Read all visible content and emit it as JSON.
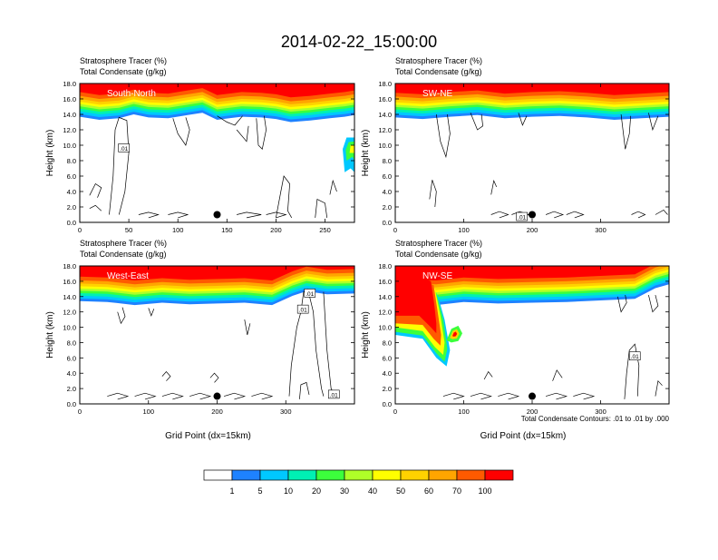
{
  "figure_title": "2014-02-22_15:00:00",
  "colors": {
    "levels": [
      "#ffffff",
      "#1e82ff",
      "#00c8ff",
      "#00f0b4",
      "#3cff3c",
      "#afff28",
      "#ffff00",
      "#ffd200",
      "#ffa500",
      "#ff5a00",
      "#ff0000"
    ],
    "panel_bg": "#ffffff"
  },
  "colorbar": {
    "labels": [
      "1",
      "5",
      "10",
      "20",
      "30",
      "40",
      "50",
      "60",
      "70",
      "100"
    ]
  },
  "footnote": "Total Condensate Contours: .01 to .01 by .000",
  "chart_data": [
    {
      "type": "heatmap",
      "name": "South-North",
      "line1": "Stratosphere Tracer   (%)",
      "line2": "Total Condensate   (g/kg)",
      "label": "South-North",
      "ylabel": "Height (km)",
      "xlabel": "",
      "xlim": [
        0,
        280
      ],
      "ylim": [
        0,
        18
      ],
      "xticks": [
        "0",
        "50",
        "100",
        "150",
        "200",
        "250"
      ],
      "yticks": [
        "0.0",
        "2.0",
        "4.0",
        "6.0",
        "8.0",
        "10.0",
        "12.0",
        "14.0",
        "16.0",
        "18.0"
      ],
      "marker": {
        "x": 140,
        "y": 1.0
      },
      "tropopause": [
        [
          0,
          14.6
        ],
        [
          20,
          14.2
        ],
        [
          40,
          14.4
        ],
        [
          55,
          14.9
        ],
        [
          70,
          14.5
        ],
        [
          90,
          14.4
        ],
        [
          110,
          14.8
        ],
        [
          125,
          15.1
        ],
        [
          140,
          14.2
        ],
        [
          165,
          14.6
        ],
        [
          185,
          14.5
        ],
        [
          200,
          14.3
        ],
        [
          215,
          13.9
        ],
        [
          235,
          14.1
        ],
        [
          255,
          14.4
        ],
        [
          270,
          14.6
        ],
        [
          280,
          14.8
        ]
      ],
      "contour_labels": [
        {
          "x": 45,
          "y": 9.6,
          "text": ".01"
        }
      ]
    },
    {
      "type": "heatmap",
      "name": "SW-NE",
      "line1": "Stratosphere Tracer   (%)",
      "line2": "Total Condensate   (g/kg)",
      "label": "SW-NE",
      "ylabel": "Height (km)",
      "xlabel": "",
      "xlim": [
        0,
        400
      ],
      "ylim": [
        0,
        18
      ],
      "xticks": [
        "0",
        "100",
        "200",
        "300"
      ],
      "yticks": [
        "0.0",
        "2.0",
        "4.0",
        "6.0",
        "8.0",
        "10.0",
        "12.0",
        "14.0",
        "16.0",
        "18.0"
      ],
      "marker": {
        "x": 200,
        "y": 1.0
      },
      "tropopause": [
        [
          0,
          14.5
        ],
        [
          40,
          14.3
        ],
        [
          80,
          14.6
        ],
        [
          120,
          14.8
        ],
        [
          160,
          14.4
        ],
        [
          200,
          14.6
        ],
        [
          240,
          14.7
        ],
        [
          280,
          14.5
        ],
        [
          320,
          14.2
        ],
        [
          360,
          14.4
        ],
        [
          400,
          14.6
        ]
      ],
      "contour_labels": [
        {
          "x": 185,
          "y": 0.7,
          "text": ".01"
        }
      ]
    },
    {
      "type": "heatmap",
      "name": "West-East",
      "line1": "Stratosphere Tracer   (%)",
      "line2": "Total Condensate   (g/kg)",
      "label": "West-East",
      "ylabel": "Height (km)",
      "xlabel": "Grid Point (dx=15km)",
      "xlim": [
        0,
        400
      ],
      "ylim": [
        0,
        18
      ],
      "xticks": [
        "0",
        "100",
        "200",
        "300"
      ],
      "yticks": [
        "0.0",
        "2.0",
        "4.0",
        "6.0",
        "8.0",
        "10.0",
        "12.0",
        "14.0",
        "16.0",
        "18.0"
      ],
      "marker": {
        "x": 200,
        "y": 1.0
      },
      "tropopause": [
        [
          0,
          14.3
        ],
        [
          40,
          14.2
        ],
        [
          80,
          13.8
        ],
        [
          120,
          14.1
        ],
        [
          160,
          13.9
        ],
        [
          200,
          14.0
        ],
        [
          240,
          14.1
        ],
        [
          280,
          13.8
        ],
        [
          310,
          15.0
        ],
        [
          330,
          15.6
        ],
        [
          360,
          15.2
        ],
        [
          400,
          15.3
        ]
      ],
      "contour_labels": [
        {
          "x": 335,
          "y": 14.4,
          "text": ".01"
        },
        {
          "x": 325,
          "y": 12.3,
          "text": ".01"
        },
        {
          "x": 370,
          "y": 1.2,
          "text": ".01"
        }
      ]
    },
    {
      "type": "heatmap",
      "name": "NW-SE",
      "line1": "Stratosphere Tracer   (%)",
      "line2": "Total Condensate   (g/kg)",
      "label": "NW-SE",
      "ylabel": "Height (km)",
      "xlabel": "Grid Point (dx=15km)",
      "xlim": [
        0,
        400
      ],
      "ylim": [
        0,
        18
      ],
      "xticks": [
        "0",
        "100",
        "200",
        "300"
      ],
      "yticks": [
        "0.0",
        "2.0",
        "4.0",
        "6.0",
        "8.0",
        "10.0",
        "12.0",
        "14.0",
        "16.0",
        "18.0"
      ],
      "marker": {
        "x": 200,
        "y": 1.0
      },
      "tropopause": [
        [
          0,
          14.0
        ],
        [
          60,
          13.8
        ],
        [
          100,
          14.2
        ],
        [
          150,
          14.0
        ],
        [
          200,
          14.1
        ],
        [
          250,
          14.2
        ],
        [
          300,
          14.4
        ],
        [
          350,
          14.6
        ],
        [
          380,
          16.0
        ],
        [
          400,
          16.5
        ]
      ],
      "contour_labels": [
        {
          "x": 350,
          "y": 6.2,
          "text": ".01"
        }
      ]
    }
  ]
}
